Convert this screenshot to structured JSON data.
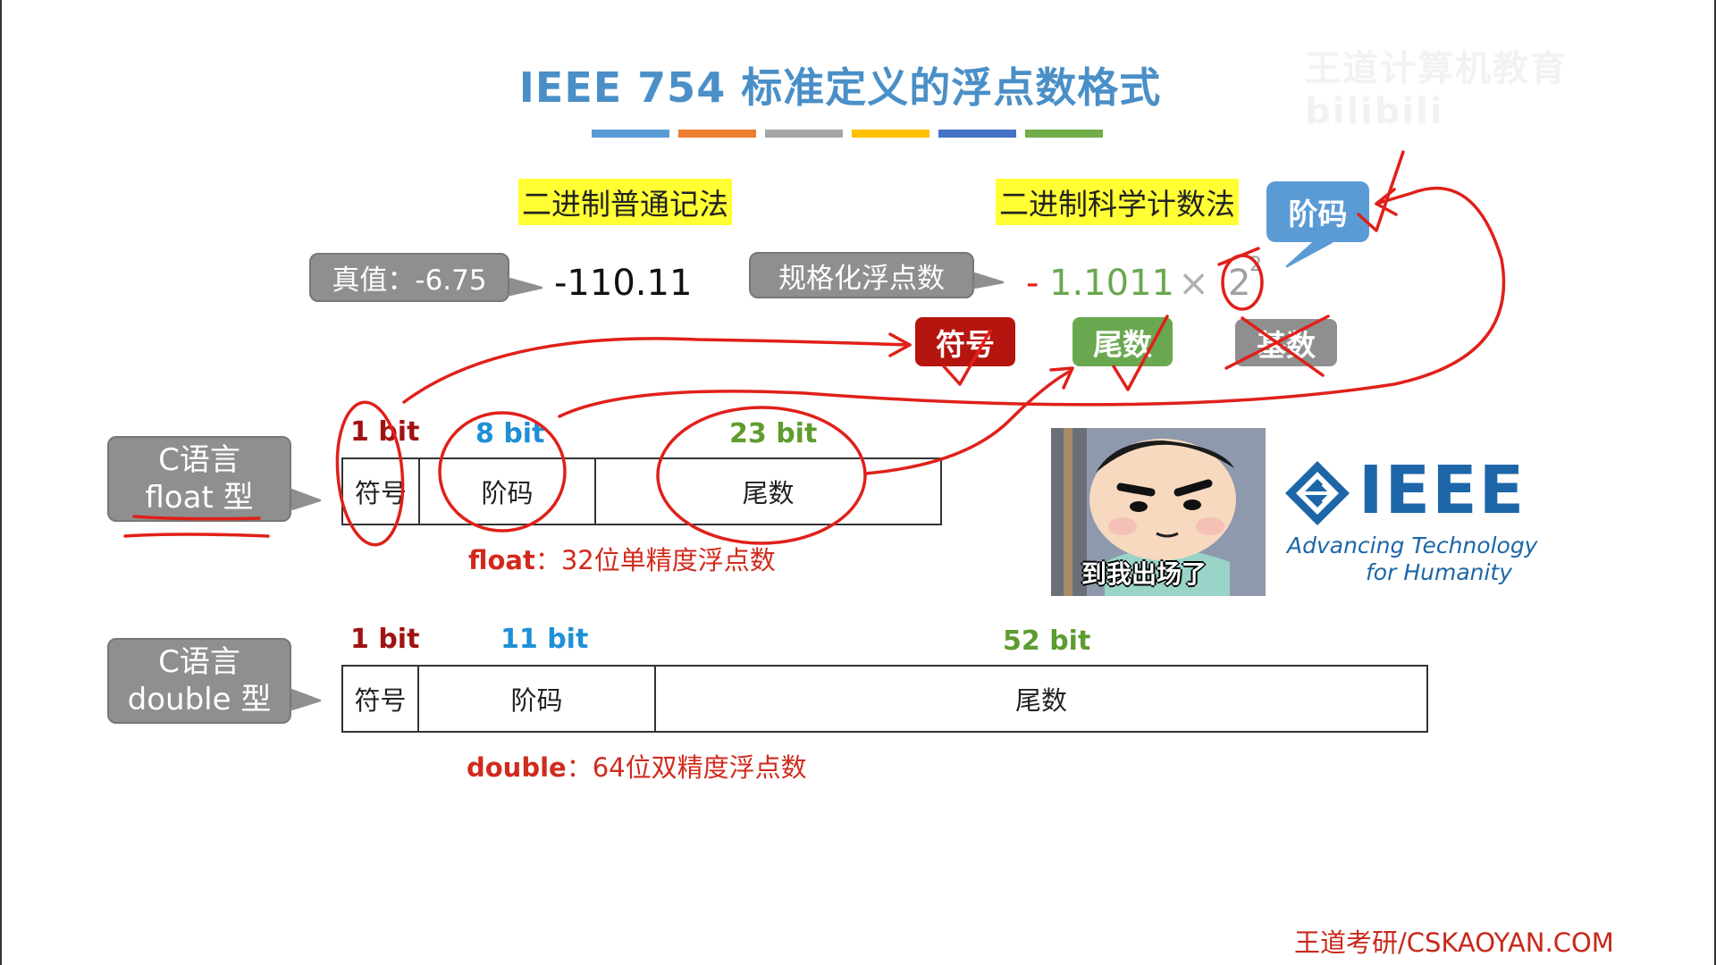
{
  "slide": {
    "title": "IEEE 754 标准定义的浮点数格式",
    "watermark": "王道计算机教育 bilibili",
    "title_bar_colors": [
      "#5b9bd5",
      "#ed7d31",
      "#a5a5a5",
      "#ffc000",
      "#4472c4",
      "#70ad47"
    ],
    "footer": "王道考研/CSKAOYAN.COM"
  },
  "notation": {
    "ordinary_label": "二进制普通记法",
    "scientific_label": "二进制科学计数法"
  },
  "true_value": {
    "callout": "真值：-6.75",
    "binary": "-110.11"
  },
  "normalized": {
    "callout": "规格化浮点数",
    "minus": "-",
    "mantissa": "1.1011",
    "times": "×",
    "base": "2",
    "exponent": "2"
  },
  "tags": {
    "sign": "符号",
    "mantissa": "尾数",
    "base": "基数",
    "exponent": "阶码"
  },
  "float_format": {
    "callout_line1": "C语言",
    "callout_line2": "float 型",
    "bits": [
      {
        "label": "1 bit",
        "color": "#a01313"
      },
      {
        "label": "8 bit",
        "color": "#1f8fd6"
      },
      {
        "label": "23 bit",
        "color": "#5d9c2e"
      }
    ],
    "fields": [
      "符号",
      "阶码",
      "尾数"
    ],
    "caption_bold": "float",
    "caption_rest": "：32位单精度浮点数"
  },
  "double_format": {
    "callout_line1": "C语言",
    "callout_line2": "double 型",
    "bits": [
      {
        "label": "1 bit",
        "color": "#a01313"
      },
      {
        "label": "11 bit",
        "color": "#1f8fd6"
      },
      {
        "label": "52 bit",
        "color": "#5d9c2e"
      }
    ],
    "fields": [
      "符号",
      "阶码",
      "尾数"
    ],
    "caption_bold": "double",
    "caption_rest": "：64位双精度浮点数"
  },
  "meme": {
    "caption": "到我出场了"
  },
  "ieee_logo": {
    "word": "IEEE",
    "tagline1": "Advancing Technology",
    "tagline2": "for Humanity"
  },
  "colors": {
    "annotation_red": "#e0201a",
    "sign_tag": "#b5150f",
    "mantissa_tag": "#6aa84f",
    "exponent_tag": "#5b9bd5",
    "base_tag": "#8f8f8f",
    "mantissa_text": "#6aa84f"
  }
}
